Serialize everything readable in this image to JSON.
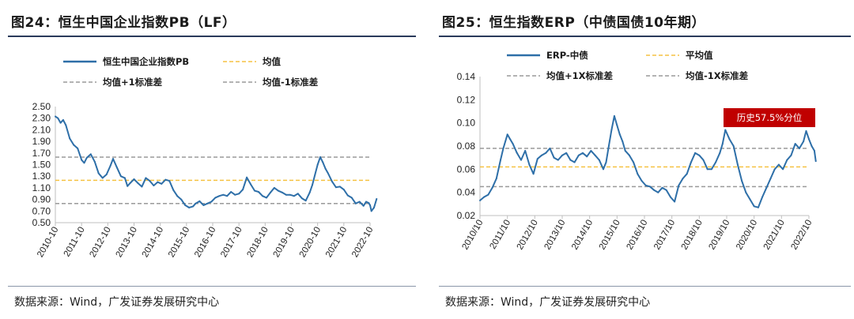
{
  "left": {
    "title": "图24：恒生中国企业指数PB（LF）",
    "source": "数据来源：Wind，广发证券发展研究中心"
  },
  "right": {
    "title": "图25：恒生指数ERP（中债国债10年期）",
    "source": "数据来源：Wind，广发证券发展研究中心"
  },
  "colors": {
    "series": "#2e6fa8",
    "mean": "#f5c242",
    "band": "#9a9a9a",
    "annotation": "#c00000"
  },
  "chart_data": [
    {
      "type": "line",
      "legend": [
        "恒生中国企业指数PB",
        "均值",
        "均值+1标准差",
        "均值-1标准差"
      ],
      "ylim": [
        0.5,
        2.5
      ],
      "yticks": [
        "2.50",
        "2.30",
        "2.10",
        "1.90",
        "1.70",
        "1.50",
        "1.30",
        "1.10",
        "0.90",
        "0.70",
        "0.50"
      ],
      "xticks": [
        "2010-10",
        "2011-10",
        "2012-10",
        "2013-10",
        "2014-10",
        "2015-10",
        "2016-10",
        "2017-10",
        "2018-10",
        "2019-10",
        "2020-10",
        "2021-10",
        "2022-10"
      ],
      "mean": 1.23,
      "mean_plus_1sd": 1.63,
      "mean_minus_1sd": 0.83,
      "series": [
        {
          "name": "恒生中国企业指数PB",
          "x": [
            2010.75,
            2010.85,
            2010.95,
            2011.05,
            2011.15,
            2011.3,
            2011.45,
            2011.6,
            2011.75,
            2011.85,
            2011.95,
            2012.1,
            2012.25,
            2012.4,
            2012.55,
            2012.7,
            2012.85,
            2012.95,
            2013.1,
            2013.25,
            2013.4,
            2013.5,
            2013.6,
            2013.75,
            2013.9,
            2014.05,
            2014.2,
            2014.35,
            2014.5,
            2014.65,
            2014.8,
            2014.95,
            2015.1,
            2015.25,
            2015.4,
            2015.55,
            2015.7,
            2015.85,
            2016.0,
            2016.1,
            2016.25,
            2016.4,
            2016.55,
            2016.7,
            2016.85,
            2017.0,
            2017.15,
            2017.3,
            2017.45,
            2017.6,
            2017.75,
            2017.9,
            2018.05,
            2018.2,
            2018.35,
            2018.5,
            2018.65,
            2018.8,
            2018.95,
            2019.1,
            2019.25,
            2019.4,
            2019.55,
            2019.7,
            2019.85,
            2020.0,
            2020.15,
            2020.3,
            2020.45,
            2020.55,
            2020.65,
            2020.75,
            2020.85,
            2020.95,
            2021.05,
            2021.15,
            2021.3,
            2021.45,
            2021.6,
            2021.75,
            2021.9,
            2022.05,
            2022.2,
            2022.35,
            2022.5,
            2022.6,
            2022.7,
            2022.75,
            2022.8,
            2022.9,
            2023.0
          ],
          "values": [
            2.33,
            2.3,
            2.22,
            2.27,
            2.18,
            1.95,
            1.84,
            1.78,
            1.58,
            1.53,
            1.62,
            1.68,
            1.55,
            1.35,
            1.27,
            1.33,
            1.48,
            1.6,
            1.45,
            1.3,
            1.27,
            1.13,
            1.18,
            1.25,
            1.18,
            1.12,
            1.27,
            1.22,
            1.14,
            1.2,
            1.17,
            1.24,
            1.22,
            1.06,
            0.96,
            0.9,
            0.8,
            0.76,
            0.78,
            0.83,
            0.87,
            0.8,
            0.83,
            0.86,
            0.93,
            0.96,
            0.98,
            0.96,
            1.03,
            0.98,
            1.0,
            1.07,
            1.28,
            1.16,
            1.05,
            1.03,
            0.96,
            0.93,
            1.02,
            1.1,
            1.05,
            1.02,
            0.98,
            0.98,
            0.96,
            1.0,
            0.92,
            0.88,
            1.02,
            1.15,
            1.33,
            1.5,
            1.63,
            1.54,
            1.43,
            1.35,
            1.21,
            1.11,
            1.12,
            1.07,
            0.97,
            0.93,
            0.83,
            0.86,
            0.79,
            0.86,
            0.84,
            0.8,
            0.7,
            0.76,
            0.91
          ]
        }
      ]
    },
    {
      "type": "line",
      "legend": [
        "ERP-中债",
        "平均值",
        "均值+1X标准差",
        "均值-1X标准差"
      ],
      "ylim": [
        0.02,
        0.14
      ],
      "yticks": [
        "0.14",
        "0.12",
        "0.10",
        "0.08",
        "0.06",
        "0.04",
        "0.02"
      ],
      "xticks": [
        "2010/10",
        "2011/10",
        "2012/10",
        "2013/10",
        "2014/10",
        "2015/10",
        "2016/10",
        "2017/10",
        "2018/10",
        "2019/10",
        "2020/10",
        "2021/10",
        "2022/10"
      ],
      "mean": 0.062,
      "mean_plus_1sd": 0.078,
      "mean_minus_1sd": 0.045,
      "annotation": "历史57.5%分位",
      "series": [
        {
          "name": "ERP-中债",
          "x": [
            2010.75,
            2010.9,
            2011.05,
            2011.2,
            2011.35,
            2011.5,
            2011.6,
            2011.75,
            2011.85,
            2011.95,
            2012.1,
            2012.25,
            2012.4,
            2012.55,
            2012.7,
            2012.85,
            2013.0,
            2013.15,
            2013.3,
            2013.45,
            2013.6,
            2013.75,
            2013.9,
            2014.05,
            2014.2,
            2014.35,
            2014.5,
            2014.65,
            2014.8,
            2014.95,
            2015.1,
            2015.25,
            2015.35,
            2015.45,
            2015.55,
            2015.65,
            2015.75,
            2015.85,
            2015.95,
            2016.05,
            2016.2,
            2016.35,
            2016.5,
            2016.65,
            2016.8,
            2016.95,
            2017.1,
            2017.25,
            2017.4,
            2017.55,
            2017.7,
            2017.85,
            2018.0,
            2018.15,
            2018.3,
            2018.45,
            2018.6,
            2018.75,
            2018.9,
            2019.05,
            2019.2,
            2019.35,
            2019.5,
            2019.6,
            2019.7,
            2019.85,
            2020.0,
            2020.15,
            2020.3,
            2020.45,
            2020.6,
            2020.75,
            2020.9,
            2021.05,
            2021.2,
            2021.35,
            2021.5,
            2021.65,
            2021.8,
            2021.95,
            2022.1,
            2022.25,
            2022.4,
            2022.55,
            2022.65,
            2022.75,
            2022.85,
            2022.95,
            2023.0
          ],
          "values": [
            0.033,
            0.036,
            0.038,
            0.044,
            0.052,
            0.068,
            0.078,
            0.09,
            0.086,
            0.082,
            0.074,
            0.068,
            0.076,
            0.064,
            0.056,
            0.069,
            0.072,
            0.074,
            0.078,
            0.07,
            0.068,
            0.072,
            0.074,
            0.068,
            0.066,
            0.072,
            0.074,
            0.071,
            0.076,
            0.072,
            0.068,
            0.06,
            0.066,
            0.08,
            0.094,
            0.106,
            0.098,
            0.09,
            0.084,
            0.076,
            0.072,
            0.066,
            0.056,
            0.05,
            0.046,
            0.045,
            0.042,
            0.04,
            0.044,
            0.042,
            0.036,
            0.032,
            0.046,
            0.052,
            0.056,
            0.066,
            0.074,
            0.072,
            0.068,
            0.06,
            0.06,
            0.066,
            0.074,
            0.082,
            0.094,
            0.086,
            0.08,
            0.064,
            0.05,
            0.04,
            0.034,
            0.028,
            0.027,
            0.036,
            0.044,
            0.052,
            0.06,
            0.064,
            0.06,
            0.068,
            0.072,
            0.082,
            0.078,
            0.084,
            0.093,
            0.086,
            0.08,
            0.076,
            0.067
          ]
        }
      ]
    }
  ]
}
